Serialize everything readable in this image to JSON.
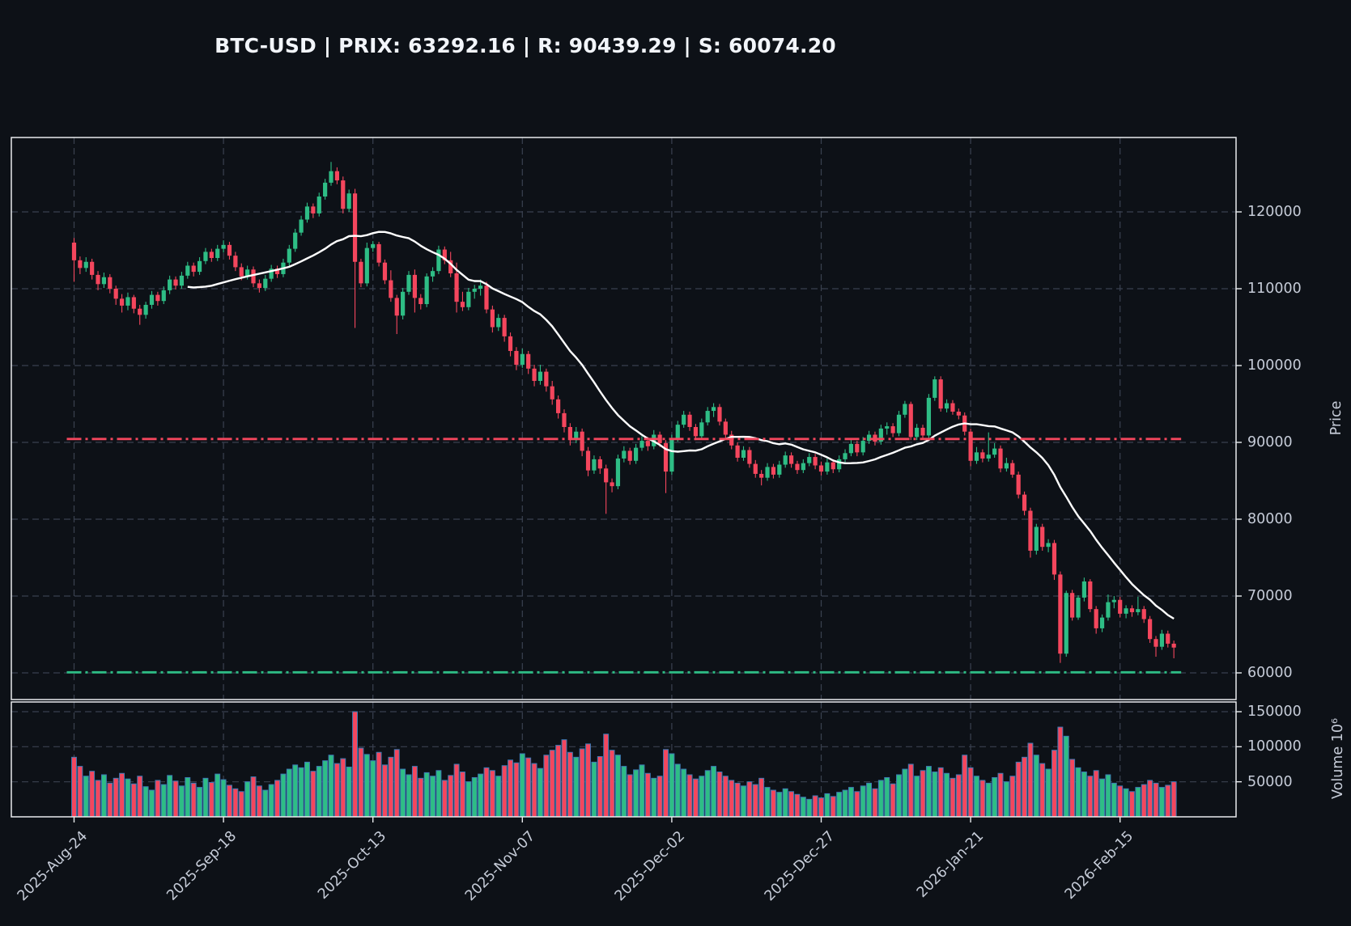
{
  "title": "BTC-USD | PRIX: 63292.16 | R: 90439.29 | S: 60074.20",
  "chart_data": {
    "type": "candlestick",
    "symbol": "BTC-USD",
    "last_price": 63292.16,
    "resistance": 90439.29,
    "support": 60074.2,
    "ylabel_price": "Price",
    "ylabel_volume": "Volume  10⁶",
    "grid": true,
    "legend_position": "none",
    "price_ticks": [
      {
        "value": 60000,
        "label": "60000"
      },
      {
        "value": 70000,
        "label": "70000"
      },
      {
        "value": 80000,
        "label": "80000"
      },
      {
        "value": 90000,
        "label": "90000"
      },
      {
        "value": 100000,
        "label": "100000"
      },
      {
        "value": 110000,
        "label": "110000"
      },
      {
        "value": 120000,
        "label": "120000"
      }
    ],
    "volume_ticks": [
      {
        "value": 50000,
        "label": "50000"
      },
      {
        "value": 100000,
        "label": "100000"
      },
      {
        "value": 150000,
        "label": "150000"
      }
    ],
    "x_ticks": [
      {
        "index": 0,
        "label": "2025-Aug-24"
      },
      {
        "index": 25,
        "label": "2025-Sep-18"
      },
      {
        "index": 50,
        "label": "2025-Oct-13"
      },
      {
        "index": 75,
        "label": "2025-Nov-07"
      },
      {
        "index": 100,
        "label": "2025-Dec-02"
      },
      {
        "index": 125,
        "label": "2025-Dec-27"
      },
      {
        "index": 150,
        "label": "2026-Jan-21"
      },
      {
        "index": 175,
        "label": "2026-Feb-15"
      }
    ],
    "price_ylim": [
      56500,
      129700
    ],
    "volume_ylim": [
      0,
      164000
    ],
    "sma_window": 20,
    "colors": {
      "up": "#2ebd85",
      "down": "#f4465d",
      "sma": "#ffffff",
      "resistance_line": "#f4465d",
      "support_line": "#2ebd85",
      "volume_edge": "#3d7ab5",
      "grid": "#3a4150",
      "spine": "#e9ebee",
      "background": "#0d1117",
      "text": "#c6ccd8",
      "title_text": "#f2f5fa"
    },
    "ohlcv": [
      [
        116000,
        116600,
        110900,
        113700,
        85000
      ],
      [
        113700,
        114200,
        111900,
        112700,
        72000
      ],
      [
        112700,
        114100,
        112200,
        113500,
        58000
      ],
      [
        113500,
        113900,
        111200,
        111800,
        65000
      ],
      [
        111800,
        112300,
        109800,
        110600,
        52000
      ],
      [
        110600,
        112100,
        110100,
        111500,
        60000
      ],
      [
        111500,
        111900,
        109400,
        110000,
        48000
      ],
      [
        110000,
        110400,
        107900,
        108700,
        55000
      ],
      [
        108700,
        109300,
        106900,
        107800,
        62000
      ],
      [
        107800,
        109500,
        107200,
        108900,
        54000
      ],
      [
        108900,
        109200,
        106800,
        107400,
        47000
      ],
      [
        107400,
        107900,
        105300,
        106600,
        58000
      ],
      [
        106600,
        108300,
        106100,
        107900,
        43000
      ],
      [
        107900,
        109700,
        107400,
        109200,
        38000
      ],
      [
        109200,
        109600,
        107800,
        108400,
        52000
      ],
      [
        108400,
        110300,
        108000,
        109800,
        46000
      ],
      [
        109800,
        111700,
        109300,
        111200,
        59000
      ],
      [
        111200,
        111600,
        109900,
        110400,
        51000
      ],
      [
        110400,
        112200,
        110000,
        111700,
        44000
      ],
      [
        111700,
        113500,
        111300,
        113000,
        56000
      ],
      [
        113000,
        113400,
        111600,
        112200,
        48000
      ],
      [
        112200,
        114100,
        111800,
        113600,
        42000
      ],
      [
        113600,
        115300,
        113200,
        114800,
        55000
      ],
      [
        114800,
        115200,
        113500,
        114000,
        49000
      ],
      [
        114000,
        115700,
        113600,
        115200,
        61000
      ],
      [
        115200,
        116300,
        114700,
        115700,
        53000
      ],
      [
        115700,
        116100,
        113800,
        114300,
        45000
      ],
      [
        114300,
        114800,
        112300,
        112800,
        40000
      ],
      [
        112800,
        113300,
        111100,
        111600,
        36000
      ],
      [
        111600,
        113000,
        111200,
        112500,
        50000
      ],
      [
        112500,
        112900,
        110200,
        110700,
        57000
      ],
      [
        110700,
        111200,
        109500,
        110100,
        44000
      ],
      [
        110100,
        111800,
        109700,
        111300,
        38000
      ],
      [
        111300,
        113100,
        110900,
        112600,
        46000
      ],
      [
        112600,
        113000,
        111400,
        111900,
        52000
      ],
      [
        111900,
        113900,
        111500,
        113400,
        61000
      ],
      [
        113400,
        115700,
        113000,
        115200,
        68000
      ],
      [
        115200,
        117800,
        114800,
        117300,
        74000
      ],
      [
        117300,
        119500,
        116900,
        119000,
        70000
      ],
      [
        119000,
        121200,
        118600,
        120700,
        78000
      ],
      [
        120700,
        121100,
        119200,
        119800,
        65000
      ],
      [
        119800,
        122500,
        119400,
        122000,
        72000
      ],
      [
        122000,
        124300,
        121600,
        123800,
        80000
      ],
      [
        123800,
        126500,
        123400,
        125300,
        88000
      ],
      [
        125300,
        125800,
        123600,
        124100,
        76000
      ],
      [
        124100,
        124600,
        119800,
        120400,
        83000
      ],
      [
        120400,
        122900,
        120000,
        122400,
        71000
      ],
      [
        122400,
        123000,
        104900,
        113500,
        150000
      ],
      [
        113500,
        113900,
        110200,
        110700,
        98000
      ],
      [
        110700,
        116000,
        110300,
        115300,
        89000
      ],
      [
        115300,
        116200,
        114800,
        115800,
        80000
      ],
      [
        115800,
        116100,
        112900,
        113400,
        92000
      ],
      [
        113400,
        113800,
        110600,
        111100,
        74000
      ],
      [
        111100,
        112400,
        108300,
        108800,
        85000
      ],
      [
        108800,
        109200,
        104100,
        106500,
        96000
      ],
      [
        106500,
        110100,
        106000,
        109600,
        68000
      ],
      [
        109600,
        112300,
        109200,
        111800,
        60000
      ],
      [
        111800,
        112500,
        106900,
        108800,
        72000
      ],
      [
        108800,
        109300,
        107300,
        108000,
        55000
      ],
      [
        108000,
        112000,
        107600,
        111600,
        63000
      ],
      [
        111600,
        112800,
        110900,
        112300,
        58000
      ],
      [
        112300,
        115600,
        111900,
        115100,
        66000
      ],
      [
        115100,
        115500,
        113200,
        113700,
        52000
      ],
      [
        113700,
        114800,
        111500,
        112000,
        59000
      ],
      [
        112000,
        113400,
        106900,
        108300,
        75000
      ],
      [
        108300,
        109600,
        107100,
        107600,
        64000
      ],
      [
        107600,
        110100,
        107200,
        109600,
        50000
      ],
      [
        109600,
        110500,
        108700,
        110000,
        56000
      ],
      [
        110000,
        111200,
        109100,
        110400,
        61000
      ],
      [
        110400,
        110900,
        106800,
        107300,
        70000
      ],
      [
        107300,
        107800,
        104300,
        105000,
        66000
      ],
      [
        105000,
        106700,
        104500,
        106200,
        58000
      ],
      [
        106200,
        106600,
        103100,
        103800,
        73000
      ],
      [
        103800,
        104300,
        101200,
        101900,
        81000
      ],
      [
        101900,
        102400,
        99400,
        100100,
        77000
      ],
      [
        100100,
        102200,
        99700,
        101500,
        90000
      ],
      [
        101500,
        101900,
        98900,
        99600,
        84000
      ],
      [
        99600,
        100100,
        97300,
        98000,
        76000
      ],
      [
        98000,
        100100,
        97500,
        99200,
        69000
      ],
      [
        99200,
        99600,
        96600,
        97300,
        88000
      ],
      [
        97300,
        98000,
        94900,
        95600,
        95000
      ],
      [
        95600,
        96100,
        93100,
        93800,
        102000
      ],
      [
        93800,
        94300,
        91300,
        92000,
        110000
      ],
      [
        92000,
        92500,
        89600,
        90300,
        92000
      ],
      [
        90300,
        92000,
        89900,
        91400,
        85000
      ],
      [
        91400,
        91800,
        88200,
        88900,
        97000
      ],
      [
        88900,
        89400,
        85600,
        86350,
        104000
      ],
      [
        86350,
        88300,
        85900,
        87800,
        78000
      ],
      [
        87800,
        88200,
        85900,
        86600,
        86000
      ],
      [
        86600,
        87100,
        80700,
        84800,
        118000
      ],
      [
        84800,
        85300,
        83500,
        84300,
        95000
      ],
      [
        84300,
        88400,
        83900,
        87900,
        88000
      ],
      [
        87900,
        89500,
        87400,
        88900,
        72000
      ],
      [
        88900,
        89300,
        87100,
        87600,
        60000
      ],
      [
        87600,
        89800,
        87200,
        89300,
        67000
      ],
      [
        89300,
        90800,
        88900,
        90200,
        74000
      ],
      [
        90200,
        90700,
        88900,
        89500,
        62000
      ],
      [
        89500,
        91600,
        89100,
        91000,
        55000
      ],
      [
        91000,
        91400,
        89400,
        89900,
        58000
      ],
      [
        89900,
        90300,
        83400,
        86200,
        96000
      ],
      [
        86200,
        91000,
        85800,
        90500,
        90000
      ],
      [
        90500,
        92800,
        90100,
        92300,
        75000
      ],
      [
        92300,
        94100,
        91900,
        93600,
        68000
      ],
      [
        93600,
        94000,
        91500,
        92000,
        60000
      ],
      [
        92000,
        92400,
        90300,
        90800,
        54000
      ],
      [
        90800,
        93100,
        90400,
        92600,
        58000
      ],
      [
        92600,
        94600,
        92200,
        94100,
        66000
      ],
      [
        94100,
        95100,
        93300,
        94600,
        72000
      ],
      [
        94600,
        95000,
        92200,
        92700,
        64000
      ],
      [
        92700,
        93100,
        90500,
        91000,
        58000
      ],
      [
        91000,
        91500,
        89100,
        89600,
        52000
      ],
      [
        89600,
        90000,
        87500,
        88000,
        48000
      ],
      [
        88000,
        89500,
        87600,
        89000,
        44000
      ],
      [
        89000,
        89400,
        86700,
        87200,
        50000
      ],
      [
        87200,
        87700,
        85400,
        85900,
        46000
      ],
      [
        85900,
        86400,
        84400,
        85400,
        55000
      ],
      [
        85400,
        87300,
        85000,
        86800,
        42000
      ],
      [
        86800,
        87200,
        85300,
        85800,
        38000
      ],
      [
        85800,
        87600,
        85400,
        87100,
        35000
      ],
      [
        87100,
        88800,
        86700,
        88300,
        40000
      ],
      [
        88300,
        88700,
        86700,
        87200,
        36000
      ],
      [
        87200,
        87600,
        85900,
        86400,
        32000
      ],
      [
        86400,
        87800,
        86000,
        87300,
        28000
      ],
      [
        87300,
        88600,
        86900,
        88100,
        25000
      ],
      [
        88100,
        88500,
        86500,
        87000,
        30000
      ],
      [
        87000,
        87500,
        85700,
        86200,
        27000
      ],
      [
        86200,
        87900,
        85800,
        87400,
        33000
      ],
      [
        87400,
        87800,
        86000,
        86500,
        29000
      ],
      [
        86500,
        88300,
        86100,
        87800,
        35000
      ],
      [
        87800,
        89100,
        87400,
        88600,
        38000
      ],
      [
        88600,
        90300,
        88200,
        89800,
        42000
      ],
      [
        89800,
        90200,
        88200,
        88700,
        36000
      ],
      [
        88700,
        90700,
        88300,
        90200,
        44000
      ],
      [
        90200,
        91500,
        89800,
        91000,
        48000
      ],
      [
        91000,
        91400,
        89600,
        90100,
        40000
      ],
      [
        90100,
        92300,
        89700,
        91800,
        52000
      ],
      [
        91800,
        92600,
        91000,
        92100,
        56000
      ],
      [
        92100,
        92500,
        90700,
        91200,
        47000
      ],
      [
        91200,
        94100,
        90800,
        93600,
        60000
      ],
      [
        93600,
        95400,
        93200,
        95000,
        68000
      ],
      [
        95000,
        95300,
        90300,
        90700,
        75000
      ],
      [
        90700,
        92400,
        90300,
        91900,
        58000
      ],
      [
        91900,
        92300,
        90400,
        90900,
        66000
      ],
      [
        90900,
        96300,
        90500,
        95800,
        72000
      ],
      [
        95800,
        98600,
        95400,
        98200,
        64000
      ],
      [
        98200,
        98600,
        94000,
        94400,
        70000
      ],
      [
        94400,
        95600,
        93900,
        95100,
        62000
      ],
      [
        95100,
        95500,
        93600,
        94000,
        55000
      ],
      [
        94000,
        94400,
        93000,
        93500,
        60000
      ],
      [
        93500,
        93900,
        90900,
        91400,
        88000
      ],
      [
        91400,
        91800,
        86900,
        87600,
        70000
      ],
      [
        87600,
        89400,
        87200,
        88700,
        58000
      ],
      [
        88700,
        89100,
        87400,
        87900,
        52000
      ],
      [
        87900,
        91300,
        87500,
        88400,
        48000
      ],
      [
        88400,
        89900,
        88000,
        89200,
        56000
      ],
      [
        89200,
        89600,
        86100,
        86600,
        62000
      ],
      [
        86600,
        88000,
        86200,
        87300,
        50000
      ],
      [
        87300,
        87700,
        85400,
        85800,
        58000
      ],
      [
        85800,
        86200,
        82700,
        83200,
        78000
      ],
      [
        83200,
        83600,
        80500,
        81100,
        85000
      ],
      [
        81100,
        81500,
        75000,
        75900,
        105000
      ],
      [
        75900,
        79400,
        75400,
        79000,
        88000
      ],
      [
        79000,
        79400,
        75900,
        76400,
        76000
      ],
      [
        76400,
        77400,
        75700,
        76900,
        68000
      ],
      [
        76900,
        77300,
        72100,
        72800,
        95000
      ],
      [
        72800,
        73200,
        61300,
        62500,
        128000
      ],
      [
        62500,
        70700,
        62100,
        70400,
        115000
      ],
      [
        70400,
        70800,
        66800,
        67200,
        82000
      ],
      [
        67200,
        70100,
        66900,
        69800,
        70000
      ],
      [
        69800,
        72400,
        69300,
        71900,
        64000
      ],
      [
        71900,
        72200,
        67900,
        68300,
        58000
      ],
      [
        68300,
        68700,
        65100,
        65800,
        66000
      ],
      [
        65800,
        67600,
        65300,
        67200,
        54000
      ],
      [
        67200,
        70200,
        66800,
        69200,
        60000
      ],
      [
        69200,
        70000,
        68400,
        69500,
        48000
      ],
      [
        69500,
        69900,
        67200,
        67700,
        44000
      ],
      [
        67700,
        68800,
        67100,
        68400,
        40000
      ],
      [
        68400,
        68800,
        67300,
        67900,
        36000
      ],
      [
        67900,
        69900,
        67500,
        68300,
        42000
      ],
      [
        68300,
        68700,
        66500,
        67000,
        46000
      ],
      [
        67000,
        67400,
        63900,
        64400,
        52000
      ],
      [
        64400,
        64800,
        62100,
        63400,
        48000
      ],
      [
        63400,
        65600,
        63000,
        65100,
        42000
      ],
      [
        65100,
        65500,
        63300,
        63800,
        45000
      ],
      [
        63800,
        64200,
        61900,
        63292.16,
        50000
      ]
    ]
  }
}
